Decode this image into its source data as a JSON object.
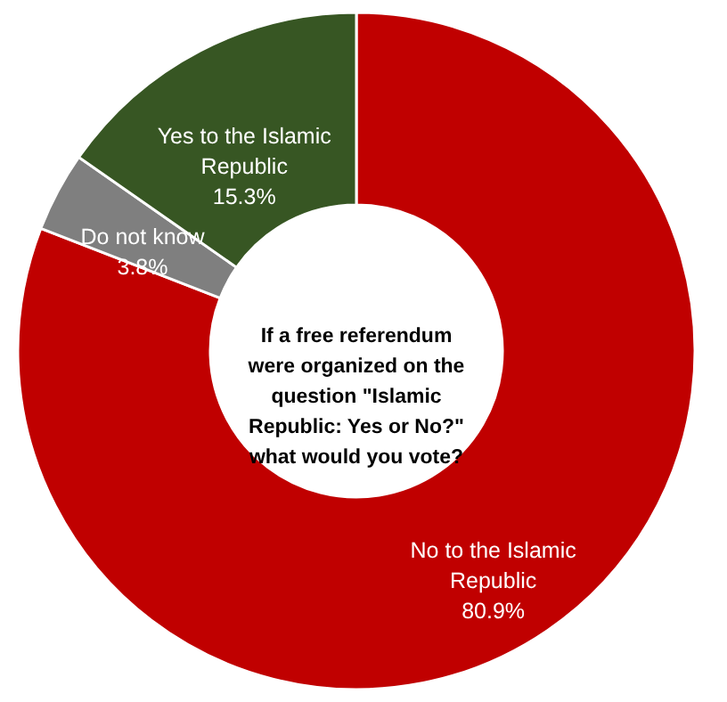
{
  "chart_data": {
    "type": "donut",
    "title": "If a free referendum were organized on the question \"Islamic Republic: Yes or No?\" what would you vote?",
    "categories": [
      "No to the Islamic Republic",
      "Do not know",
      "Yes to the Islamic Republic"
    ],
    "values": [
      80.9,
      3.8,
      15.3
    ],
    "colors": [
      "#c00000",
      "#7f7f7f",
      "#375623"
    ],
    "value_labels": [
      "80.9%",
      "3.8%",
      "15.3%"
    ],
    "legend": false
  }
}
